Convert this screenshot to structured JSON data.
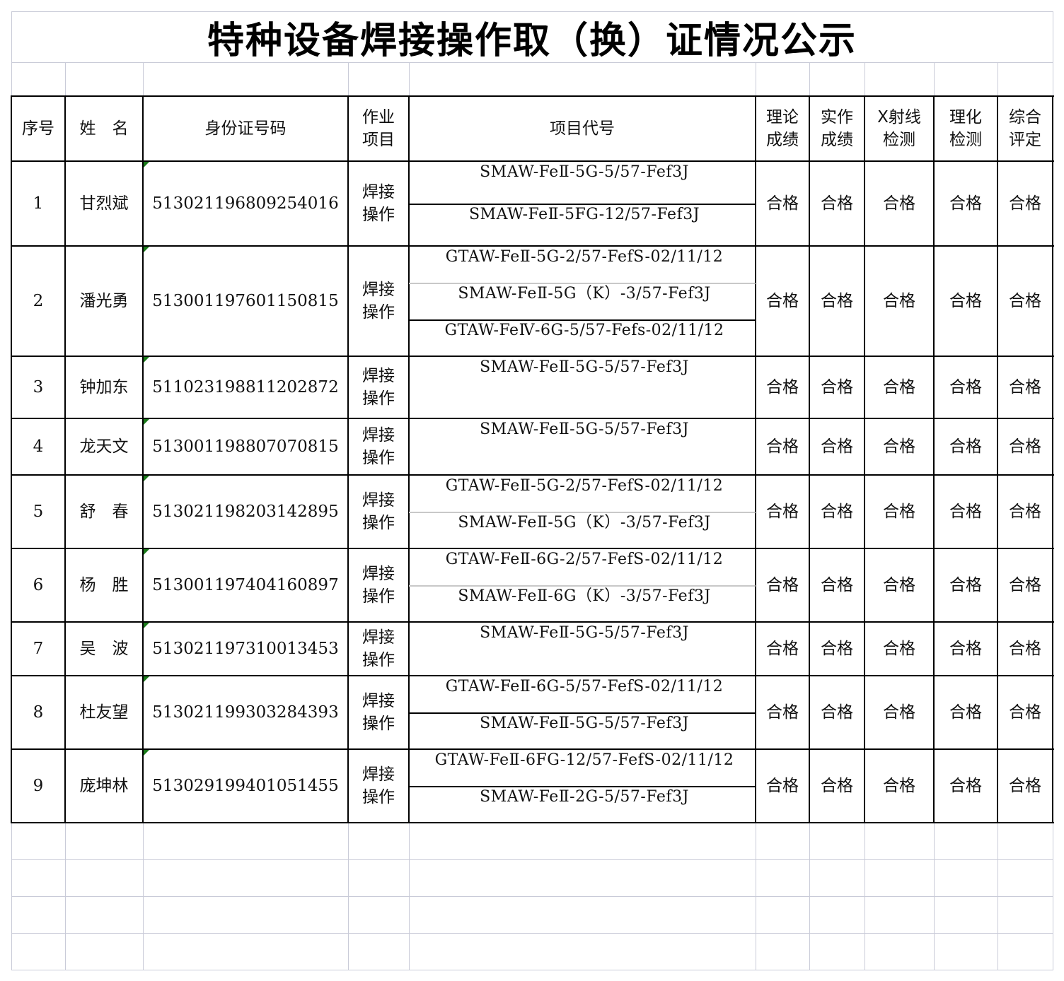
{
  "title": "特种设备焊接操作取（换）证情况公示",
  "headers": [
    "序号",
    "姓　名",
    "身份证号码",
    "作业\n项目",
    "项目代号",
    "理论\n成绩",
    "实作\n成绩",
    "X射线\n检测",
    "理化\n检测",
    "综合\n评定"
  ],
  "rows": [
    {
      "no": "1",
      "name": "甘烈斌",
      "id": "513021196809254016",
      "work": "焊接\n操作",
      "codes": [
        "SMAW-FeⅡ-5G-5/57-Fef3J",
        "SMAW-FeⅡ-5FG-12/57-Fef3J"
      ],
      "results": [
        "合格",
        "合格",
        "合格",
        "合格",
        "合格"
      ]
    },
    {
      "no": "2",
      "name": "潘光勇",
      "id": "513001197601150815",
      "work": "焊接\n操作",
      "codes": [
        "GTAW-FeⅡ-5G-2/57-FefS-02/11/12",
        "SMAW-FeⅡ-5G（K）-3/57-Fef3J",
        "GTAW-FeⅣ-6G-5/57-Fefs-02/11/12"
      ],
      "results": [
        "合格",
        "合格",
        "合格",
        "合格",
        "合格"
      ]
    },
    {
      "no": "3",
      "name": "钟加东",
      "id": "511023198811202872",
      "work": "焊接\n操作",
      "codes": [
        "SMAW-FeⅡ-5G-5/57-Fef3J"
      ],
      "results": [
        "合格",
        "合格",
        "合格",
        "合格",
        "合格"
      ]
    },
    {
      "no": "4",
      "name": "龙天文",
      "id": "513001198807070815",
      "work": "焊接\n操作",
      "codes": [
        "SMAW-FeⅡ-5G-5/57-Fef3J"
      ],
      "results": [
        "合格",
        "合格",
        "合格",
        "合格",
        "合格"
      ]
    },
    {
      "no": "5",
      "name": "舒　春",
      "id": "513021198203142895",
      "work": "焊接\n操作",
      "codes": [
        "GTAW-FeⅡ-5G-2/57-FefS-02/11/12",
        "SMAW-FeⅡ-5G（K）-3/57-Fef3J"
      ],
      "results": [
        "合格",
        "合格",
        "合格",
        "合格",
        "合格"
      ]
    },
    {
      "no": "6",
      "name": "杨　胜",
      "id": "513001197404160897",
      "work": "焊接\n操作",
      "codes": [
        "GTAW-FeⅡ-6G-2/57-FefS-02/11/12",
        "SMAW-FeⅡ-6G（K）-3/57-Fef3J"
      ],
      "results": [
        "合格",
        "合格",
        "合格",
        "合格",
        "合格"
      ]
    },
    {
      "no": "7",
      "name": "吴　波",
      "id": "513021197310013453",
      "work": "焊接\n操作",
      "codes": [
        "SMAW-FeⅡ-5G-5/57-Fef3J"
      ],
      "results": [
        "合格",
        "合格",
        "合格",
        "合格",
        "合格"
      ]
    },
    {
      "no": "8",
      "name": "杜友望",
      "id": "513021199303284393",
      "work": "焊接\n操作",
      "codes": [
        "GTAW-FeⅡ-6G-5/57-FefS-02/11/12",
        "SMAW-FeⅡ-5G-5/57-Fef3J"
      ],
      "results": [
        "合格",
        "合格",
        "合格",
        "合格",
        "合格"
      ]
    },
    {
      "no": "9",
      "name": "庞坤林",
      "id": "513029199401051455",
      "work": "焊接\n操作",
      "codes": [
        "GTAW-FeⅡ-6FG-12/57-FefS-02/11/12",
        "SMAW-FeⅡ-2G-5/57-Fef3J"
      ],
      "results": [
        "合格",
        "合格",
        "合格",
        "合格",
        "合格"
      ]
    }
  ]
}
